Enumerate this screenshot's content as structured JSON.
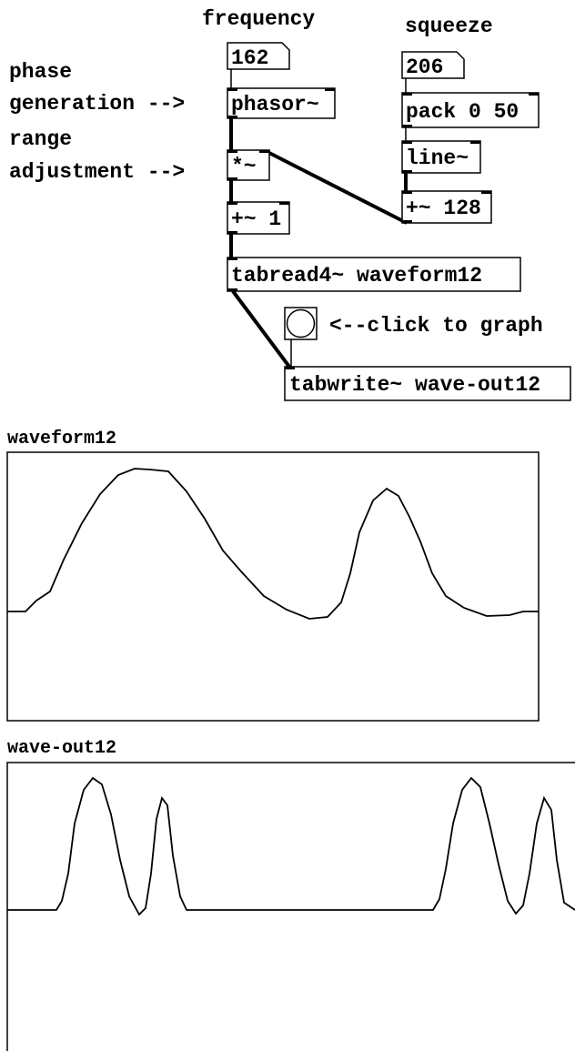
{
  "comments": [
    "frequency",
    "squeeze",
    "phase",
    "generation -->",
    "range",
    "adjustment -->",
    "<--click to graph"
  ],
  "number_boxes": [
    162,
    206
  ],
  "objects": [
    "phasor~",
    "*~",
    "+~ 1",
    "tabread4~ waveform12",
    "pack 0 50",
    "line~",
    "+~ 128",
    "tabwrite~ wave-out12"
  ],
  "arrays": [
    "waveform12",
    "wave-out12"
  ]
}
